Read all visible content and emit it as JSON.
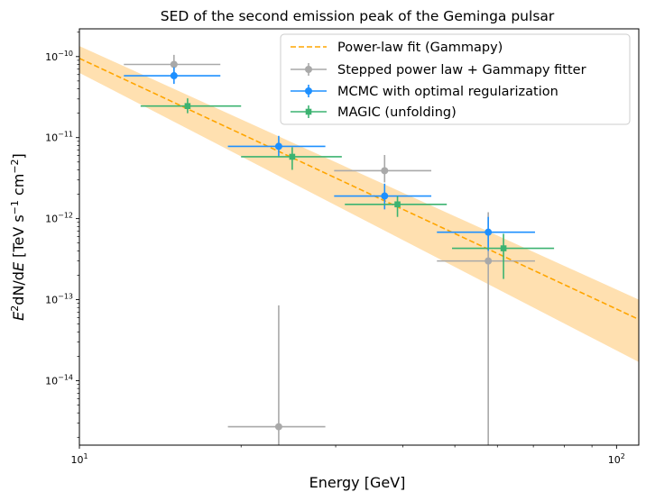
{
  "chart_data": {
    "type": "scatter",
    "title": "SED of the second emission peak of the Geminga pulsar",
    "xlabel": "Energy [GeV]",
    "ylabel_parts": [
      "E",
      "2",
      "dN/d",
      "E",
      " [TeV s",
      "−1",
      " cm",
      "−2",
      "]"
    ],
    "xscale": "log",
    "yscale": "log",
    "xlim": [
      10,
      110
    ],
    "ylim": [
      1.6e-15,
      2.2e-10
    ],
    "x_ticks": [
      {
        "value": 10,
        "label": "10",
        "sup": "1"
      },
      {
        "value": 100,
        "label": "10",
        "sup": "2"
      }
    ],
    "y_ticks": [
      {
        "value": 1e-14,
        "label": "10",
        "sup": "−14"
      },
      {
        "value": 1e-13,
        "label": "10",
        "sup": "−13"
      },
      {
        "value": 1e-12,
        "label": "10",
        "sup": "−12"
      },
      {
        "value": 1e-11,
        "label": "10",
        "sup": "−11"
      },
      {
        "value": 1e-10,
        "label": "10",
        "sup": "−10"
      }
    ],
    "legend_position": "top-right",
    "fit": {
      "name": "Power-law fit (Gammapy)",
      "color": "#ffa500",
      "band_color": "#ffe0b0",
      "x": [
        10,
        110
      ],
      "y": [
        9.5e-11,
        5.7e-14
      ],
      "band_low": [
        6.3e-11,
        1.7e-14
      ],
      "band_high": [
        1.35e-10,
        1e-13
      ]
    },
    "series": [
      {
        "name": "Stepped power law + Gammapy fitter",
        "color": "#a9a9a9",
        "marker": "circle",
        "points": [
          {
            "x": 15.0,
            "xlo": 12.1,
            "xhi": 18.3,
            "y": 8e-11,
            "ylo": 6.3e-11,
            "yhi": 1.05e-10
          },
          {
            "x": 23.5,
            "xlo": 18.9,
            "xhi": 28.7,
            "y": 2.7e-15,
            "ylo": 1.6e-15,
            "yhi": 8.5e-14
          },
          {
            "x": 37.0,
            "xlo": 29.8,
            "xhi": 45.2,
            "y": 3.9e-12,
            "ylo": 2.8e-12,
            "yhi": 6.1e-12
          },
          {
            "x": 57.7,
            "xlo": 46.3,
            "xhi": 70.5,
            "y": 3e-13,
            "ylo": 1.6e-15,
            "yhi": 1.2e-12
          }
        ]
      },
      {
        "name": "MCMC with optimal regularization",
        "color": "#1e90ff",
        "marker": "circle",
        "points": [
          {
            "x": 15.0,
            "xlo": 12.1,
            "xhi": 18.3,
            "y": 5.8e-11,
            "ylo": 4.6e-11,
            "yhi": 7.4e-11
          },
          {
            "x": 23.5,
            "xlo": 18.9,
            "xhi": 28.7,
            "y": 7.8e-12,
            "ylo": 5.7e-12,
            "yhi": 1.05e-11
          },
          {
            "x": 37.0,
            "xlo": 29.8,
            "xhi": 45.2,
            "y": 1.9e-12,
            "ylo": 1.3e-12,
            "yhi": 2.7e-12
          },
          {
            "x": 57.7,
            "xlo": 46.3,
            "xhi": 70.5,
            "y": 6.8e-13,
            "ylo": 4e-13,
            "yhi": 1.05e-12
          }
        ]
      },
      {
        "name": "MAGIC (unfolding)",
        "color": "#3cb371",
        "marker": "square",
        "points": [
          {
            "x": 15.9,
            "xlo": 13.0,
            "xhi": 20.0,
            "y": 2.45e-11,
            "ylo": 2e-11,
            "yhi": 3.05e-11
          },
          {
            "x": 24.9,
            "xlo": 20.0,
            "xhi": 30.8,
            "y": 5.8e-12,
            "ylo": 4e-12,
            "yhi": 7.6e-12
          },
          {
            "x": 39.1,
            "xlo": 31.2,
            "xhi": 48.3,
            "y": 1.5e-12,
            "ylo": 1.05e-12,
            "yhi": 1.9e-12
          },
          {
            "x": 61.6,
            "xlo": 49.4,
            "xhi": 76.5,
            "y": 4.3e-13,
            "ylo": 1.8e-13,
            "yhi": 6.5e-13
          }
        ]
      }
    ]
  }
}
